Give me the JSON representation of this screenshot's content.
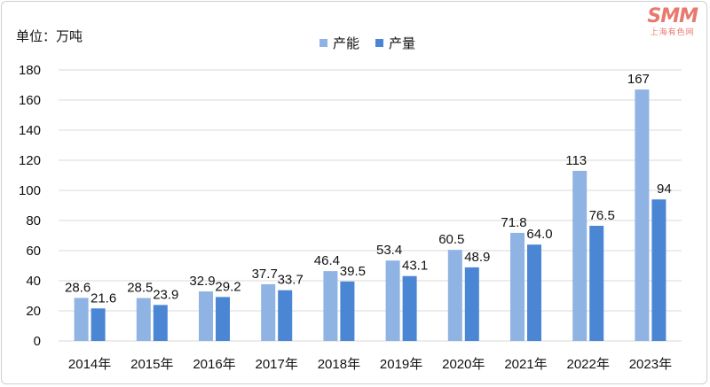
{
  "unit_label": "单位：万吨",
  "logo": {
    "mark": "SMM",
    "sub": "上海有色网"
  },
  "colors": {
    "capacity": "#8fb4e3",
    "output": "#4a86d4",
    "grid": "#d9d9d9"
  },
  "chart_data": {
    "type": "bar",
    "categories": [
      "2014年",
      "2015年",
      "2016年",
      "2017年",
      "2018年",
      "2019年",
      "2020年",
      "2021年",
      "2022年",
      "2023年"
    ],
    "series": [
      {
        "name": "产能",
        "values": [
          28.6,
          28.5,
          32.9,
          37.7,
          46.4,
          53.4,
          60.5,
          71.8,
          113,
          167
        ],
        "labels": [
          "28.6",
          "28.5",
          "32.9",
          "37.7",
          "46.4",
          "53.4",
          "60.5",
          "71.8",
          "113",
          "167"
        ]
      },
      {
        "name": "产量",
        "values": [
          21.6,
          23.9,
          29.2,
          33.7,
          39.5,
          43.1,
          48.9,
          64.0,
          76.5,
          94
        ],
        "labels": [
          "21.6",
          "23.9",
          "29.2",
          "33.7",
          "39.5",
          "43.1",
          "48.9",
          "64.0",
          "76.5",
          "94"
        ]
      }
    ],
    "ylim": [
      0,
      180
    ],
    "yticks": [
      0,
      20,
      40,
      60,
      80,
      100,
      120,
      140,
      160,
      180
    ],
    "grid": true,
    "legend_position": "top-center"
  }
}
